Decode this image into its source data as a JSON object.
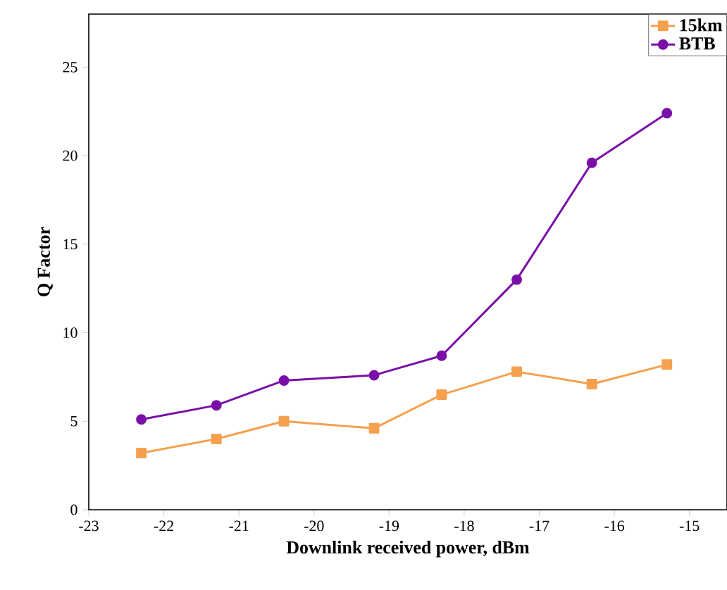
{
  "chart_data": {
    "type": "line",
    "xlabel": "Downlink received power, dBm",
    "ylabel": "Q Factor",
    "xlim": [
      -23,
      -14.5
    ],
    "xticks": [
      -23,
      -22,
      -21,
      -20,
      -19,
      -18,
      -17,
      -16,
      -15
    ],
    "ylim": [
      0,
      28
    ],
    "yticks": [
      0,
      5,
      10,
      15,
      20,
      25
    ],
    "x": [
      -22.3,
      -21.3,
      -20.4,
      -19.2,
      -18.3,
      -17.3,
      -16.3,
      -15.3
    ],
    "legend": "top right",
    "grid": false,
    "series": [
      {
        "name": "15km",
        "color": "#f5a04f",
        "marker": "square",
        "values": [
          3.2,
          4.0,
          5.0,
          4.6,
          6.5,
          7.8,
          7.1,
          8.2
        ]
      },
      {
        "name": "BTB",
        "color": "#7a0ea8",
        "marker": "circle",
        "values": [
          5.1,
          5.9,
          7.3,
          7.6,
          8.7,
          13.0,
          19.6,
          22.4
        ]
      }
    ]
  }
}
